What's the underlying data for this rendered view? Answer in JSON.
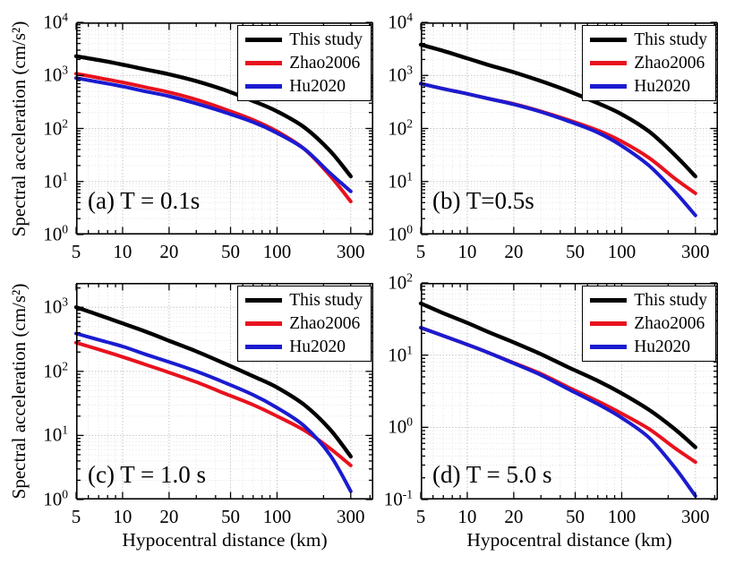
{
  "figure": {
    "background": "#ffffff",
    "text_color": "#000000",
    "grid": "log-log dotted gray"
  },
  "legend": {
    "position": "top-right",
    "entries": [
      {
        "label": "This study",
        "color": "#000000"
      },
      {
        "label": "Zhao2006",
        "color": "#e8121e"
      },
      {
        "label": "Hu2020",
        "color": "#1b1bd0"
      }
    ]
  },
  "chart_data": [
    {
      "id": "a",
      "type": "line",
      "panel_label": "(a) T = 0.1s",
      "ylabel": "Spectral acceleration (cm/s²)",
      "xscale": "log",
      "yscale": "log",
      "xlim": [
        5,
        420
      ],
      "ylim": [
        1,
        10000
      ],
      "xticks": [
        5,
        10,
        20,
        50,
        100,
        300
      ],
      "yticks_exp": [
        0,
        1,
        2,
        3,
        4
      ],
      "x": [
        5,
        7,
        10,
        14,
        20,
        30,
        45,
        70,
        100,
        150,
        220,
        300
      ],
      "series": [
        {
          "name": "This study",
          "color": "#000000",
          "values": [
            2300,
            1950,
            1600,
            1300,
            1050,
            780,
            540,
            330,
            210,
            105,
            38,
            12.5
          ]
        },
        {
          "name": "Zhao2006",
          "color": "#e8121e",
          "values": [
            1080,
            900,
            740,
            600,
            480,
            350,
            235,
            145,
            88,
            41,
            13,
            4.2
          ]
        },
        {
          "name": "Hu2020",
          "color": "#1b1bd0",
          "values": [
            890,
            750,
            620,
            500,
            405,
            295,
            205,
            132,
            82,
            41,
            14.5,
            6.5
          ]
        }
      ]
    },
    {
      "id": "b",
      "type": "line",
      "panel_label": "(b) T=0.5s",
      "xscale": "log",
      "yscale": "log",
      "xlim": [
        5,
        420
      ],
      "ylim": [
        1,
        10000
      ],
      "xticks": [
        5,
        10,
        20,
        50,
        100,
        300
      ],
      "yticks_exp": [
        0,
        1,
        2,
        3,
        4
      ],
      "x": [
        5,
        7,
        10,
        14,
        20,
        30,
        45,
        70,
        100,
        150,
        220,
        300
      ],
      "series": [
        {
          "name": "This study",
          "color": "#000000",
          "values": [
            3800,
            2900,
            2100,
            1550,
            1150,
            780,
            510,
            300,
            185,
            88,
            32,
            12.5
          ]
        },
        {
          "name": "Zhao2006",
          "color": "#e8121e",
          "values": [
            700,
            560,
            450,
            360,
            290,
            210,
            145,
            92,
            57,
            28,
            11.5,
            6.0
          ]
        },
        {
          "name": "Hu2020",
          "color": "#1b1bd0",
          "values": [
            700,
            560,
            450,
            360,
            285,
            205,
            138,
            84,
            47,
            20,
            6.5,
            2.3
          ]
        }
      ]
    },
    {
      "id": "c",
      "type": "line",
      "panel_label": "(c) T = 1.0 s",
      "xlabel": "Hypocentral distance (km)",
      "ylabel": "Spectral acceleration (cm/s²)",
      "xscale": "log",
      "yscale": "log",
      "xlim": [
        5,
        420
      ],
      "ylim": [
        1,
        2400
      ],
      "xticks": [
        5,
        10,
        20,
        50,
        100,
        300
      ],
      "yticks_exp": [
        0,
        1,
        2,
        3
      ],
      "x": [
        5,
        7,
        10,
        14,
        20,
        30,
        45,
        70,
        100,
        150,
        220,
        300
      ],
      "series": [
        {
          "name": "This study",
          "color": "#000000",
          "values": [
            1000,
            760,
            560,
            420,
            300,
            205,
            135,
            84,
            56,
            30,
            12.5,
            4.7
          ]
        },
        {
          "name": "Zhao2006",
          "color": "#e8121e",
          "values": [
            280,
            220,
            168,
            128,
            96,
            68,
            46,
            30,
            20,
            12,
            6.3,
            3.4
          ]
        },
        {
          "name": "Hu2020",
          "color": "#1b1bd0",
          "values": [
            390,
            310,
            245,
            185,
            140,
            100,
            68,
            43,
            27,
            14,
            5.0,
            1.35
          ]
        }
      ]
    },
    {
      "id": "d",
      "type": "line",
      "panel_label": "(d) T = 5.0 s",
      "xlabel": "Hypocentral distance (km)",
      "xscale": "log",
      "yscale": "log",
      "xlim": [
        5,
        420
      ],
      "ylim": [
        0.1,
        100
      ],
      "xticks": [
        5,
        10,
        20,
        50,
        100,
        300
      ],
      "yticks_exp": [
        -1,
        0,
        1,
        2
      ],
      "x": [
        5,
        7,
        10,
        14,
        20,
        30,
        45,
        70,
        100,
        150,
        220,
        300
      ],
      "series": [
        {
          "name": "This study",
          "color": "#000000",
          "values": [
            52,
            38,
            28,
            20.5,
            15,
            10.3,
            6.8,
            4.4,
            2.95,
            1.75,
            0.95,
            0.53
          ]
        },
        {
          "name": "Zhao2006",
          "color": "#e8121e",
          "values": [
            24,
            18.5,
            14,
            10.6,
            7.8,
            5.5,
            3.6,
            2.3,
            1.55,
            0.95,
            0.52,
            0.33
          ]
        },
        {
          "name": "Hu2020",
          "color": "#1b1bd0",
          "values": [
            24,
            18.5,
            14,
            10.6,
            7.7,
            5.3,
            3.4,
            2.1,
            1.35,
            0.72,
            0.28,
            0.112
          ]
        }
      ]
    }
  ]
}
